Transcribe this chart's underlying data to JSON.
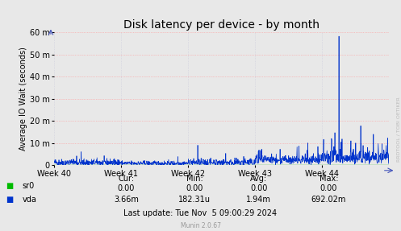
{
  "title": "Disk latency per device - by month",
  "ylabel": "Average IO Wait (seconds)",
  "x_labels": [
    "Week 40",
    "Week 41",
    "Week 42",
    "Week 43",
    "Week 44"
  ],
  "ylim": [
    0,
    0.06
  ],
  "yticks": [
    0,
    0.01,
    0.02,
    0.03,
    0.04,
    0.05,
    0.06
  ],
  "ytick_labels": [
    "0",
    "10 m",
    "20 m",
    "30 m",
    "40 m",
    "50 m",
    "60 m"
  ],
  "bg_color": "#e8e8e8",
  "plot_bg_color": "#e8e8e8",
  "grid_color_h": "#ff9999",
  "grid_color_v": "#ccccdd",
  "line_color_sr0": "#00bb00",
  "line_color_vda": "#0033cc",
  "table_headers": [
    "Cur:",
    "Min:",
    "Avg:",
    "Max:"
  ],
  "table_sr0": [
    "0.00",
    "0.00",
    "0.00",
    "0.00"
  ],
  "table_vda": [
    "3.66m",
    "182.31u",
    "1.94m",
    "692.02m"
  ],
  "last_update": "Last update: Tue Nov  5 09:00:29 2024",
  "munin_version": "Munin 2.0.67",
  "watermark": "RRDTOOL / TOBI OETIKER",
  "title_fontsize": 10,
  "tick_fontsize": 7,
  "table_fontsize": 7,
  "ylabel_fontsize": 7
}
